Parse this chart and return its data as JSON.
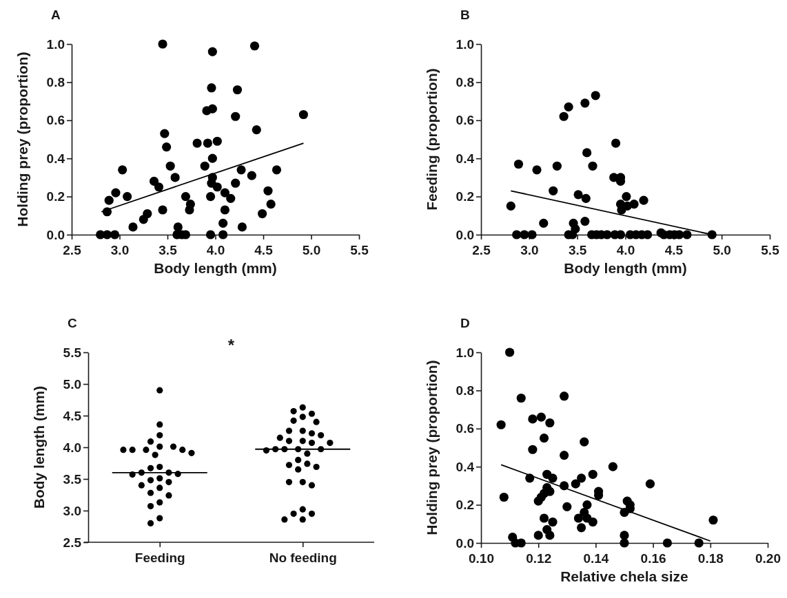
{
  "chart_data": [
    {
      "type": "scatter",
      "title": "A",
      "xlabel": "Body length (mm)",
      "ylabel": "Holding prey (proportion)",
      "marker": "circle",
      "xlim": [
        2.5,
        5.5
      ],
      "xticks": [
        2.5,
        {
          "value": 3,
          "label": "3.0"
        },
        3.5,
        {
          "value": 4,
          "label": "4.0"
        },
        4.5,
        {
          "value": 5,
          "label": "5.0"
        },
        5.5
      ],
      "ylim": [
        0,
        1
      ],
      "yticks": [
        {
          "value": 0,
          "label": "0.0"
        },
        0.2,
        0.4,
        0.6,
        0.8,
        {
          "value": 1,
          "label": "1.0"
        }
      ],
      "series": [
        {
          "type": "scatter",
          "color": "#000000",
          "x": [
            2.8,
            2.87,
            2.95,
            2.87,
            2.89,
            2.96,
            3.03,
            3.08,
            3.14,
            3.25,
            3.29,
            3.36,
            3.41,
            3.45,
            3.45,
            3.47,
            3.49,
            3.53,
            3.58,
            3.61,
            3.6,
            3.65,
            3.69,
            3.69,
            3.74,
            3.73,
            3.81,
            3.89,
            3.91,
            3.92,
            3.96,
            3.97,
            3.97,
            3.97,
            3.97,
            3.96,
            3.95,
            3.95,
            4.02,
            4.02,
            4.08,
            4.08,
            4.1,
            4.1,
            4.16,
            4.21,
            4.21,
            4.23,
            4.27,
            4.28,
            4.38,
            4.41,
            4.43,
            4.49,
            4.55,
            4.58,
            4.64,
            4.92
          ],
          "values": [
            0,
            0,
            0,
            0.12,
            0.18,
            0.22,
            0.34,
            0.2,
            0.04,
            0.08,
            0.11,
            0.28,
            0.25,
            0.13,
            1.0,
            0.53,
            0.46,
            0.36,
            0.3,
            0.04,
            0,
            0,
            0,
            0.2,
            0.16,
            0.13,
            0.48,
            0.36,
            0.65,
            0.48,
            0.77,
            0.96,
            0.66,
            0.4,
            0.3,
            0.27,
            0.2,
            0,
            0.49,
            0.25,
            0.06,
            0,
            0.22,
            0.13,
            0.19,
            0.27,
            0.62,
            0.76,
            0.34,
            0.04,
            0.31,
            0.99,
            0.55,
            0.11,
            0.23,
            0.16,
            0.34,
            0.63
          ]
        },
        {
          "type": "line",
          "marker": "none",
          "color": "#000000",
          "x": [
            2.81,
            4.92
          ],
          "values": [
            0.12,
            0.48
          ]
        }
      ]
    },
    {
      "type": "scatter",
      "title": "B",
      "xlabel": "Body length (mm)",
      "ylabel": "Feeding (proportion)",
      "marker": "circle",
      "xlim": [
        2.5,
        5.5
      ],
      "xticks": [
        2.5,
        {
          "value": 3,
          "label": "3.0"
        },
        3.5,
        {
          "value": 4,
          "label": "4.0"
        },
        4.5,
        {
          "value": 5,
          "label": "5.0"
        },
        5.5
      ],
      "ylim": [
        0,
        1
      ],
      "yticks": [
        {
          "value": 0,
          "label": "0.0"
        },
        0.2,
        0.4,
        0.6,
        0.8,
        {
          "value": 1,
          "label": "1.0"
        }
      ],
      "series": [
        {
          "type": "scatter",
          "color": "#000000",
          "x": [
            2.81,
            2.89,
            2.87,
            2.95,
            3.03,
            3.08,
            3.15,
            3.25,
            3.29,
            3.36,
            3.41,
            3.41,
            3.45,
            3.46,
            3.48,
            3.51,
            3.58,
            3.58,
            3.59,
            3.6,
            3.66,
            3.69,
            3.65,
            3.7,
            3.75,
            3.81,
            3.9,
            3.88,
            3.95,
            3.95,
            3.95,
            3.96,
            4.01,
            4.02,
            4.09,
            4.19,
            3.89,
            3.95,
            4.05,
            4.11,
            4.17,
            4.23,
            4.37,
            4.4,
            4.46,
            4.51,
            4.56,
            4.64,
            4.9
          ],
          "values": [
            0.15,
            0.37,
            0,
            0,
            0,
            0.34,
            0.06,
            0.23,
            0.36,
            0.62,
            0.67,
            0,
            0,
            0.06,
            0.03,
            0.21,
            0.07,
            0.69,
            0.19,
            0.43,
            0.36,
            0.73,
            0,
            0,
            0,
            0,
            0.48,
            0.3,
            0.3,
            0.28,
            0.16,
            0.13,
            0.2,
            0.15,
            0.16,
            0.18,
            0,
            0,
            0,
            0,
            0,
            0,
            0.01,
            0,
            0,
            0,
            0,
            0,
            0
          ]
        },
        {
          "type": "line",
          "marker": "none",
          "color": "#000000",
          "x": [
            2.81,
            4.9
          ],
          "values": [
            0.23,
            0
          ]
        }
      ]
    },
    {
      "type": "scatter",
      "title": "C",
      "ylabel": "Body length (mm)",
      "marker": "circle",
      "categories": [
        "Feeding",
        "No feeding"
      ],
      "ylim": [
        2.5,
        5.5
      ],
      "yticks": [
        2.5,
        {
          "value": 3,
          "label": "3.0"
        },
        3.5,
        {
          "value": 4,
          "label": "4.0"
        },
        4.5,
        {
          "value": 5,
          "label": "5.0"
        },
        5.5
      ],
      "annotations": [
        "*"
      ],
      "ref_lines": [
        {
          "axis": "y",
          "value": 3.6,
          "color": "#000000"
        },
        {
          "axis": "y",
          "value": 3.97,
          "color": "#000000"
        }
      ],
      "series": [
        {
          "type": "scatter",
          "color": "#000000",
          "x": [
            "Feeding",
            "Feeding",
            "Feeding",
            "Feeding",
            "Feeding",
            "Feeding",
            "Feeding",
            "Feeding",
            "Feeding",
            "Feeding",
            "Feeding",
            "Feeding",
            "Feeding",
            "Feeding",
            "Feeding",
            "Feeding",
            "Feeding",
            "Feeding",
            "Feeding",
            "Feeding",
            "Feeding",
            "Feeding",
            "Feeding",
            "Feeding",
            "Feeding",
            "Feeding",
            "Feeding",
            "Feeding",
            "Feeding"
          ],
          "values": [
            4.9,
            4.36,
            4.19,
            4.09,
            4.01,
            4.01,
            3.96,
            3.96,
            3.96,
            3.96,
            3.91,
            3.88,
            3.69,
            3.67,
            3.6,
            3.6,
            3.58,
            3.57,
            3.51,
            3.48,
            3.45,
            3.4,
            3.36,
            3.28,
            3.24,
            3.13,
            3.07,
            2.88,
            2.8
          ]
        },
        {
          "type": "scatter",
          "color": "#000000",
          "x": [
            "No feeding",
            "No feeding",
            "No feeding",
            "No feeding",
            "No feeding",
            "No feeding",
            "No feeding",
            "No feeding",
            "No feeding",
            "No feeding",
            "No feeding",
            "No feeding",
            "No feeding",
            "No feeding",
            "No feeding",
            "No feeding",
            "No feeding",
            "No feeding",
            "No feeding",
            "No feeding",
            "No feeding",
            "No feeding",
            "No feeding",
            "No feeding",
            "No feeding",
            "No feeding",
            "No feeding",
            "No feeding",
            "No feeding",
            "No feeding",
            "No feeding",
            "No feeding",
            "No feeding",
            "No feeding"
          ],
          "values": [
            4.63,
            4.57,
            4.53,
            4.48,
            4.42,
            4.4,
            4.26,
            4.26,
            4.22,
            4.19,
            4.15,
            4.1,
            4.1,
            4.07,
            4.07,
            3.97,
            3.97,
            3.97,
            3.97,
            3.95,
            3.9,
            3.8,
            3.74,
            3.72,
            3.69,
            3.65,
            3.45,
            3.45,
            3.4,
            3.02,
            2.95,
            2.95,
            2.86,
            2.86
          ]
        }
      ]
    },
    {
      "type": "scatter",
      "title": "D",
      "xlabel": "Relative chela size",
      "ylabel": "Holding prey (proportion)",
      "marker": "circle",
      "xlim": [
        0.1,
        0.2
      ],
      "xticks": [
        {
          "value": 0.1,
          "label": "0.10"
        },
        {
          "value": 0.12,
          "label": "0.12"
        },
        {
          "value": 0.14,
          "label": "0.14"
        },
        {
          "value": 0.16,
          "label": "0.16"
        },
        {
          "value": 0.18,
          "label": "0.18"
        },
        {
          "value": 0.2,
          "label": "0.20"
        }
      ],
      "ylim": [
        0,
        1
      ],
      "yticks": [
        {
          "value": 0,
          "label": "0.0"
        },
        0.2,
        0.4,
        0.6,
        0.8,
        {
          "value": 1,
          "label": "1.0"
        }
      ],
      "series": [
        {
          "type": "scatter",
          "color": "#000000",
          "x": [
            0.107,
            0.108,
            0.11,
            0.111,
            0.112,
            0.114,
            0.114,
            0.117,
            0.118,
            0.118,
            0.12,
            0.12,
            0.121,
            0.121,
            0.122,
            0.122,
            0.122,
            0.123,
            0.123,
            0.123,
            0.124,
            0.124,
            0.124,
            0.125,
            0.125,
            0.129,
            0.129,
            0.129,
            0.13,
            0.133,
            0.134,
            0.135,
            0.135,
            0.136,
            0.136,
            0.137,
            0.137,
            0.139,
            0.139,
            0.141,
            0.141,
            0.146,
            0.15,
            0.15,
            0.15,
            0.151,
            0.152,
            0.152,
            0.159,
            0.165,
            0.176,
            0.181
          ],
          "values": [
            0.62,
            0.24,
            1.0,
            0.03,
            0,
            0,
            0.76,
            0.34,
            0.65,
            0.49,
            0.04,
            0.22,
            0.24,
            0.66,
            0.13,
            0.26,
            0.55,
            0.29,
            0.07,
            0.36,
            0.27,
            0.63,
            0.04,
            0.11,
            0.34,
            0.3,
            0.46,
            0.77,
            0.19,
            0.31,
            0.13,
            0.34,
            0.08,
            0.16,
            0.53,
            0.2,
            0.13,
            0.11,
            0.36,
            0.27,
            0.25,
            0.4,
            0.16,
            0.04,
            0,
            0.22,
            0.2,
            0.18,
            0.31,
            0,
            0,
            0.12
          ]
        },
        {
          "type": "line",
          "marker": "none",
          "color": "#000000",
          "x": [
            0.107,
            0.18
          ],
          "values": [
            0.41,
            0.01
          ]
        }
      ]
    }
  ]
}
